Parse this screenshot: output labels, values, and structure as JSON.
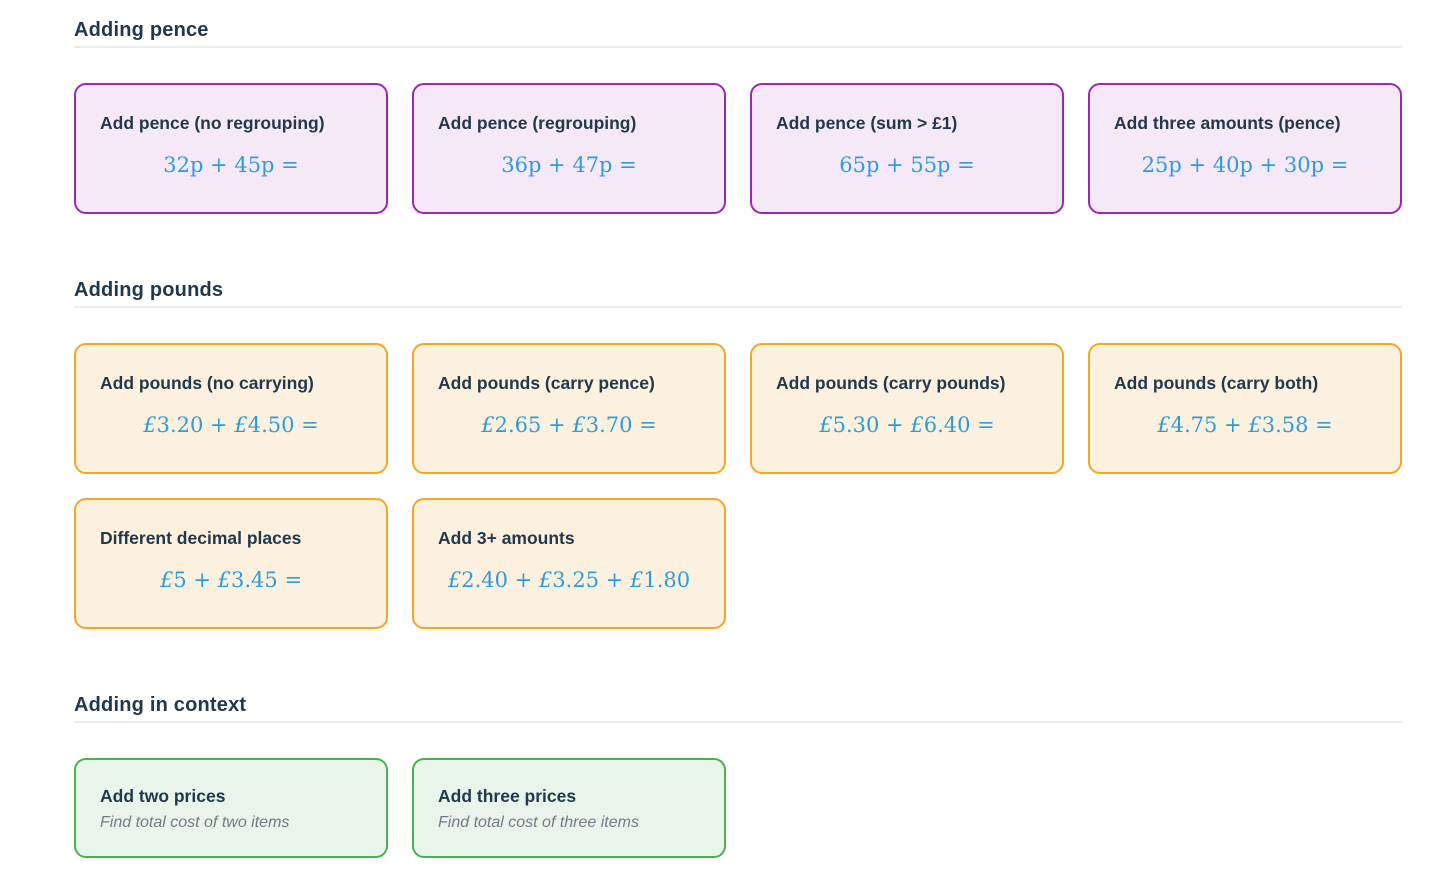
{
  "colors": {
    "heading_text": "#22384C",
    "math_blue": "#2D9CDB",
    "pence_border": "#9C27B0",
    "pence_background": "#F5E9F7",
    "pounds_border": "#F5A623",
    "pounds_background": "#FCF1DE",
    "context_border": "#4CAF50",
    "context_background": "#E9F4EA",
    "subtitle_gray": "#6F7D85",
    "divider_gray": "#ECECEC"
  },
  "sections": [
    {
      "title": "Adding pence",
      "cards": [
        {
          "title": "Add pence (no regrouping)",
          "math": "32p + 45p ="
        },
        {
          "title": "Add pence (regrouping)",
          "math": "36p + 47p ="
        },
        {
          "title": "Add pence (sum > £1)",
          "math": "65p + 55p ="
        },
        {
          "title": "Add three amounts (pence)",
          "math": "25p + 40p + 30p ="
        }
      ]
    },
    {
      "title": "Adding pounds",
      "cards": [
        {
          "title": "Add pounds (no carrying)",
          "math": "£3.20 + £4.50 ="
        },
        {
          "title": "Add pounds (carry pence)",
          "math": "£2.65 + £3.70 ="
        },
        {
          "title": "Add pounds (carry pounds)",
          "math": "£5.30 + £6.40 ="
        },
        {
          "title": "Add pounds (carry both)",
          "math": "£4.75 + £3.58 ="
        },
        {
          "title": "Different decimal places",
          "math": "£5 + £3.45 ="
        },
        {
          "title": "Add 3+ amounts",
          "math": "£2.40 + £3.25 + £1.80"
        }
      ]
    },
    {
      "title": "Adding in context",
      "cards": [
        {
          "title": "Add two prices",
          "subtitle": "Find total cost of two items"
        },
        {
          "title": "Add three prices",
          "subtitle": "Find total cost of three items"
        }
      ]
    }
  ]
}
